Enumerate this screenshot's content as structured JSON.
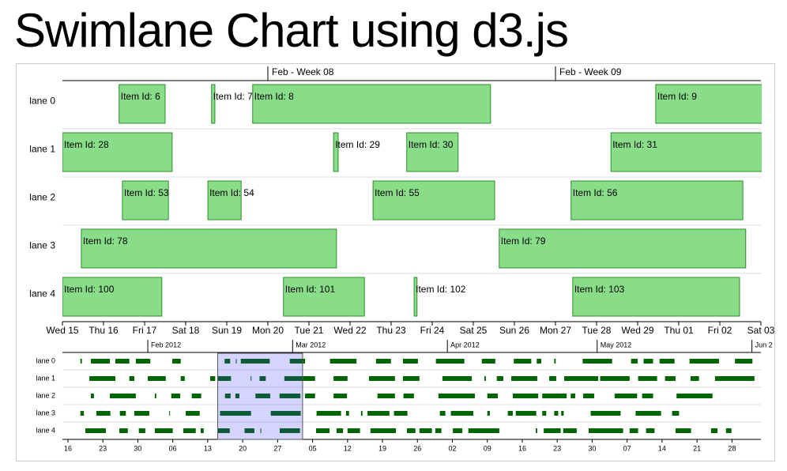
{
  "chart_data": {
    "type": "swimlane",
    "title": "Swimlane Chart using d3.js",
    "item_color": "#89dd89",
    "item_stroke": "#2e8b2e",
    "mini_color": "#006400",
    "main": {
      "xlim": [
        46,
        63
      ],
      "xticks": [
        {
          "value": 46,
          "label": "Wed 15"
        },
        {
          "value": 47,
          "label": "Thu 16"
        },
        {
          "value": 48,
          "label": "Fri 17"
        },
        {
          "value": 49,
          "label": "Sat 18"
        },
        {
          "value": 50,
          "label": "Sun 19"
        },
        {
          "value": 51,
          "label": "Mon 20"
        },
        {
          "value": 52,
          "label": "Tue 21"
        },
        {
          "value": 53,
          "label": "Wed 22"
        },
        {
          "value": 54,
          "label": "Thu 23"
        },
        {
          "value": 55,
          "label": "Fri 24"
        },
        {
          "value": 56,
          "label": "Sat 25"
        },
        {
          "value": 57,
          "label": "Sun 26"
        },
        {
          "value": 58,
          "label": "Mon 27"
        },
        {
          "value": 59,
          "label": "Tue 28"
        },
        {
          "value": 60,
          "label": "Wed 29"
        },
        {
          "value": 61,
          "label": "Thu 01"
        },
        {
          "value": 62,
          "label": "Fri 02"
        },
        {
          "value": 63,
          "label": "Sat 03"
        }
      ],
      "week_ticks": [
        {
          "value": 51,
          "label": "Feb - Week 08"
        },
        {
          "value": 58,
          "label": "Feb - Week 09"
        }
      ]
    },
    "mini": {
      "xlim": [
        14.9,
        154.8
      ],
      "xticks": [
        {
          "value": 16,
          "label": "16"
        },
        {
          "value": 23,
          "label": "23"
        },
        {
          "value": 30,
          "label": "30"
        },
        {
          "value": 37,
          "label": "06"
        },
        {
          "value": 44,
          "label": "13"
        },
        {
          "value": 51,
          "label": "20"
        },
        {
          "value": 58,
          "label": "27"
        },
        {
          "value": 65,
          "label": "05"
        },
        {
          "value": 72,
          "label": "12"
        },
        {
          "value": 79,
          "label": "19"
        },
        {
          "value": 86,
          "label": "26"
        },
        {
          "value": 93,
          "label": "02"
        },
        {
          "value": 100,
          "label": "09"
        },
        {
          "value": 107,
          "label": "16"
        },
        {
          "value": 114,
          "label": "23"
        },
        {
          "value": 121,
          "label": "30"
        },
        {
          "value": 128,
          "label": "07"
        },
        {
          "value": 135,
          "label": "14"
        },
        {
          "value": 142,
          "label": "21"
        },
        {
          "value": 149,
          "label": "28"
        }
      ],
      "month_ticks": [
        {
          "value": 32,
          "label": "Feb 2012"
        },
        {
          "value": 61,
          "label": "Mar 2012"
        },
        {
          "value": 92,
          "label": "Apr 2012"
        },
        {
          "value": 122,
          "label": "May 2012"
        },
        {
          "value": 153,
          "label": "Jun 2"
        }
      ]
    },
    "lanes": [
      {
        "name": "lane 0",
        "items": [
          {
            "label": "Item Id: 6",
            "start": 47.38,
            "end": 48.5
          },
          {
            "label": "Item Id: 7",
            "start": 49.63,
            "end": 49.71
          },
          {
            "label": "Item Id: 8",
            "start": 50.63,
            "end": 56.42
          },
          {
            "label": "Item Id: 9",
            "start": 60.44,
            "end": 63.5
          }
        ],
        "mini": [
          [
            18.5,
            18.8
          ],
          [
            20.6,
            24.4
          ],
          [
            25.5,
            28.3
          ],
          [
            29.6,
            32.5
          ],
          [
            36.9,
            38.6
          ],
          [
            68.5,
            73.8
          ],
          [
            77.7,
            80.7
          ],
          [
            83.1,
            86.1
          ],
          [
            89.7,
            95.4
          ],
          [
            98.9,
            101.6
          ],
          [
            105.3,
            108.8
          ],
          [
            109.9,
            110.8
          ],
          [
            113.4,
            113.7
          ],
          [
            119.1,
            125
          ],
          [
            128.8,
            130.1
          ],
          [
            131.3,
            133.2
          ],
          [
            134.5,
            137.5
          ],
          [
            140.5,
            146.4
          ],
          [
            149.6,
            153.1
          ]
        ]
      },
      {
        "name": "lane 1",
        "items": [
          {
            "label": "Item Id: 28",
            "start": 46,
            "end": 48.67
          },
          {
            "label": "Item Id: 29",
            "start": 52.6,
            "end": 52.71
          },
          {
            "label": "Item Id: 30",
            "start": 54.38,
            "end": 55.63
          },
          {
            "label": "Item Id: 31",
            "start": 59.35,
            "end": 65.5
          }
        ],
        "mini": [
          [
            20.3,
            25.5
          ],
          [
            28.3,
            29.3
          ],
          [
            32,
            35.6
          ],
          [
            38.6,
            39.4
          ],
          [
            44.5,
            45.5
          ],
          [
            69.2,
            72
          ],
          [
            76.3,
            81.5
          ],
          [
            83.1,
            86.4
          ],
          [
            91,
            96.9
          ],
          [
            99.4,
            99.7
          ],
          [
            101.9,
            103.2
          ],
          [
            104.8,
            110
          ],
          [
            112.4,
            113.8
          ],
          [
            115.4,
            122.2
          ],
          [
            122.6,
            128.5
          ],
          [
            130.2,
            134
          ],
          [
            135.6,
            137.7
          ],
          [
            140.7,
            142.4
          ],
          [
            145.6,
            153.5
          ]
        ]
      },
      {
        "name": "lane 2",
        "items": [
          {
            "label": "Item Id: 53",
            "start": 47.46,
            "end": 48.58
          },
          {
            "label": "Item Id: 54",
            "start": 49.54,
            "end": 50.35
          },
          {
            "label": "Item Id: 55",
            "start": 53.56,
            "end": 56.52
          },
          {
            "label": "Item Id: 56",
            "start": 58.38,
            "end": 62.56
          }
        ],
        "mini": [
          [
            20.6,
            21.2
          ],
          [
            24.4,
            29.6
          ],
          [
            33.4,
            33.7
          ],
          [
            36.7,
            38.5
          ],
          [
            40.8,
            42.7
          ],
          [
            63.5,
            65.5
          ],
          [
            69.2,
            71.9
          ],
          [
            78,
            81.5
          ],
          [
            83.2,
            85.3
          ],
          [
            90.2,
            97.5
          ],
          [
            100,
            102.1
          ],
          [
            105.1,
            110.2
          ],
          [
            111,
            115.9
          ],
          [
            116.7,
            117.6
          ],
          [
            119.2,
            121.4
          ],
          [
            125.5,
            130
          ],
          [
            131,
            133.2
          ],
          [
            137.9,
            145.1
          ]
        ]
      },
      {
        "name": "lane 3",
        "items": [
          {
            "label": "Item Id: 78",
            "start": 46.46,
            "end": 52.67
          },
          {
            "label": "Item Id: 79",
            "start": 56.63,
            "end": 62.63
          }
        ],
        "mini": [
          [
            18.5,
            19.2
          ],
          [
            21.7,
            24.5
          ],
          [
            26.4,
            27.6
          ],
          [
            29.3,
            32.3
          ],
          [
            36.3,
            36.4
          ],
          [
            39.6,
            42.4
          ],
          [
            65.8,
            70.7
          ],
          [
            71.7,
            72.3
          ],
          [
            74.7,
            75
          ],
          [
            76,
            80.4
          ],
          [
            81.3,
            84
          ],
          [
            90.5,
            91.6
          ],
          [
            92.7,
            97.2
          ],
          [
            100,
            100.5
          ],
          [
            104.1,
            105.1
          ],
          [
            105.7,
            109.8
          ],
          [
            111,
            111.8
          ],
          [
            113.4,
            114.2
          ],
          [
            114.8,
            115.3
          ],
          [
            120.7,
            126.7
          ],
          [
            129.7,
            134.8
          ],
          [
            137,
            138.4
          ]
        ]
      },
      {
        "name": "lane 4",
        "items": [
          {
            "label": "Item Id: 100",
            "start": 46,
            "end": 48.42
          },
          {
            "label": "Item Id: 101",
            "start": 51.38,
            "end": 53.35
          },
          {
            "label": "Item Id: 102",
            "start": 54.56,
            "end": 54.63
          },
          {
            "label": "Item Id: 103",
            "start": 58.42,
            "end": 62.48
          }
        ],
        "mini": [
          [
            19.5,
            23.6
          ],
          [
            26.3,
            28
          ],
          [
            30.2,
            31.5
          ],
          [
            33.4,
            37
          ],
          [
            39.1,
            41.6
          ],
          [
            42.6,
            43.2
          ],
          [
            65.7,
            68.4
          ],
          [
            69.8,
            71.1
          ],
          [
            72,
            74.5
          ],
          [
            76.6,
            81.7
          ],
          [
            83.9,
            85.6
          ],
          [
            86.4,
            88.9
          ],
          [
            89.6,
            90.8
          ],
          [
            93.1,
            95
          ],
          [
            96.2,
            102.4
          ],
          [
            109.7,
            110
          ],
          [
            111.3,
            114.7
          ],
          [
            115.2,
            117.9
          ],
          [
            120.3,
            127.2
          ],
          [
            128.5,
            130.2
          ],
          [
            131.8,
            133.5
          ],
          [
            137.7,
            140.8
          ],
          [
            144.8,
            146.1
          ],
          [
            147.8,
            148.9
          ]
        ]
      }
    ]
  }
}
